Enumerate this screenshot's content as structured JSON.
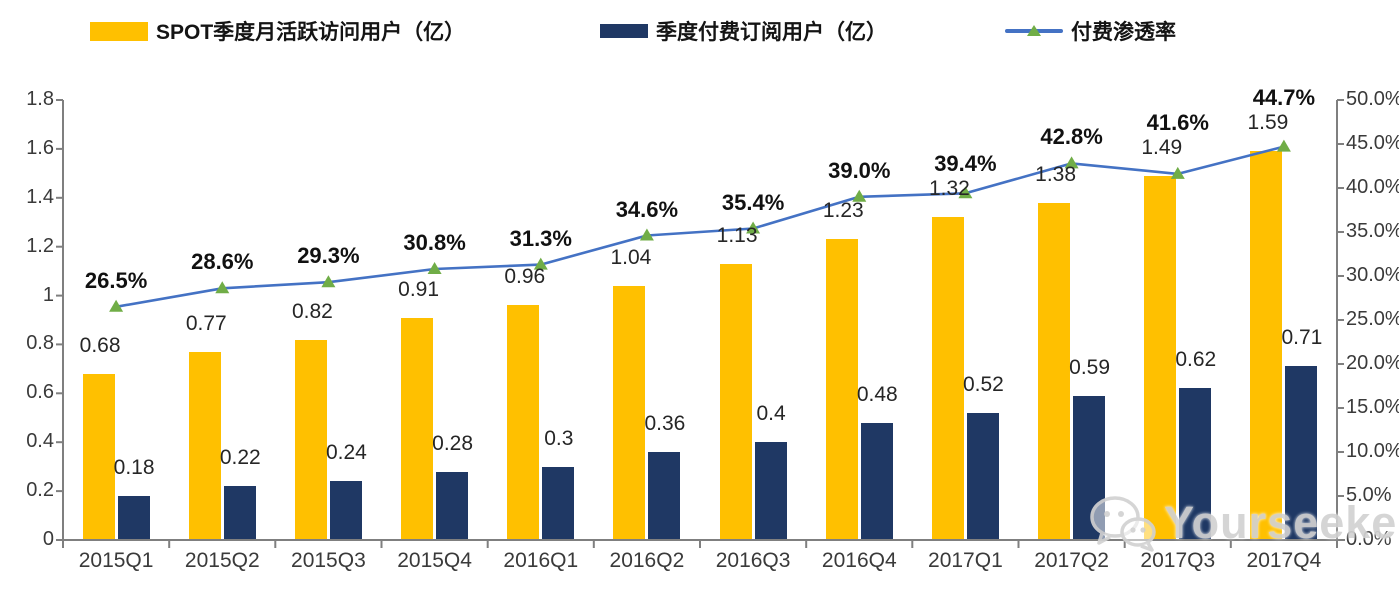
{
  "chart_data": {
    "type": "combo",
    "title": "",
    "categories": [
      "2015Q1",
      "2015Q2",
      "2015Q3",
      "2015Q4",
      "2016Q1",
      "2016Q2",
      "2016Q3",
      "2016Q4",
      "2017Q1",
      "2017Q2",
      "2017Q3",
      "2017Q4"
    ],
    "series": [
      {
        "name": "SPOT季度月活跃访问用户（亿）",
        "type": "bar",
        "axis": "left",
        "color": "#FFC000",
        "values": [
          0.68,
          0.77,
          0.82,
          0.91,
          0.96,
          1.04,
          1.13,
          1.23,
          1.32,
          1.38,
          1.49,
          1.59
        ],
        "labels": [
          "0.68",
          "0.77",
          "0.82",
          "0.91",
          "0.96",
          "1.04",
          "1.13",
          "1.23",
          "1.32",
          "1.38",
          "1.49",
          "1.59"
        ]
      },
      {
        "name": "季度付费订阅用户（亿）",
        "type": "bar",
        "axis": "left",
        "color": "#1F3864",
        "values": [
          0.18,
          0.22,
          0.24,
          0.28,
          0.3,
          0.36,
          0.4,
          0.48,
          0.52,
          0.59,
          0.62,
          0.71
        ],
        "labels": [
          "0.18",
          "0.22",
          "0.24",
          "0.28",
          "0.3",
          "0.36",
          "0.4",
          "0.48",
          "0.52",
          "0.59",
          "0.62",
          "0.71"
        ]
      },
      {
        "name": "付费渗透率",
        "type": "line",
        "axis": "right",
        "color": "#4472C4",
        "marker": "triangle",
        "marker_color": "#70AD47",
        "values_percent": [
          26.5,
          28.6,
          29.3,
          30.8,
          31.3,
          34.6,
          35.4,
          39.0,
          39.4,
          42.8,
          41.6,
          44.7
        ],
        "labels": [
          "26.5%",
          "28.6%",
          "29.3%",
          "30.8%",
          "31.3%",
          "34.6%",
          "35.4%",
          "39.0%",
          "39.4%",
          "42.8%",
          "41.6%",
          "44.7%"
        ]
      }
    ],
    "left_axis": {
      "min": 0,
      "max": 1.8,
      "ticks": [
        "0",
        "0.2",
        "0.4",
        "0.6",
        "0.8",
        "1",
        "1.2",
        "1.4",
        "1.6",
        "1.8"
      ]
    },
    "right_axis": {
      "min": 0,
      "max": 50,
      "ticks": [
        "0.0%",
        "5.0%",
        "10.0%",
        "15.0%",
        "20.0%",
        "25.0%",
        "30.0%",
        "35.0%",
        "40.0%",
        "45.0%",
        "50.0%"
      ]
    },
    "legend_position": "top",
    "grid": false
  },
  "watermark": {
    "text": "Yourseeker"
  },
  "colors": {
    "axis": "#7f7f7f"
  }
}
